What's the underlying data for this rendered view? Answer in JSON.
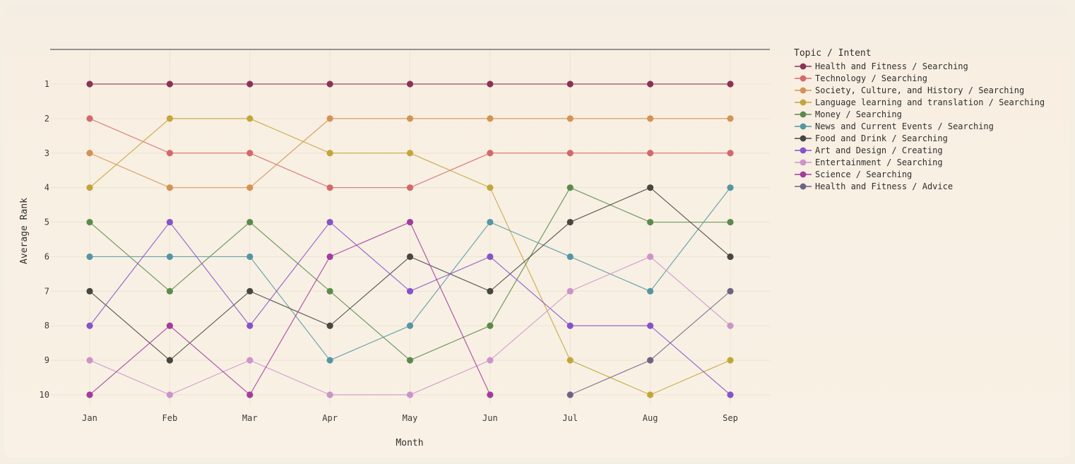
{
  "chart_data": {
    "type": "line",
    "xlabel": "Month",
    "ylabel": "Average Rank",
    "x": [
      "Jan",
      "Feb",
      "Mar",
      "Apr",
      "May",
      "Jun",
      "Jul",
      "Aug",
      "Sep"
    ],
    "yticks": [
      "1",
      "2",
      "3",
      "4",
      "5",
      "6",
      "7",
      "8",
      "9",
      "10"
    ],
    "ylim": [
      10.9,
      0
    ],
    "y_reversed": true,
    "grid": true,
    "legend": {
      "title": "Topic / Intent",
      "placement": "right"
    },
    "series": [
      {
        "name": "Health and Fitness / Searching",
        "color": "#8b3356",
        "values": [
          1,
          1,
          1,
          1,
          1,
          1,
          1,
          1,
          1
        ]
      },
      {
        "name": "Technology / Searching",
        "color": "#d2696b",
        "values": [
          2,
          3,
          3,
          4,
          4,
          3,
          3,
          3,
          3
        ]
      },
      {
        "name": "Society, Culture, and History / Searching",
        "color": "#d49254",
        "values": [
          3,
          4,
          4,
          2,
          2,
          2,
          2,
          2,
          2
        ]
      },
      {
        "name": "Language learning and translation / Searching",
        "color": "#c3a63a",
        "values": [
          4,
          2,
          2,
          3,
          3,
          4,
          9,
          10,
          9
        ]
      },
      {
        "name": "Money / Searching",
        "color": "#5b8b4b",
        "values": [
          5,
          7,
          5,
          7,
          9,
          8,
          4,
          5,
          5
        ]
      },
      {
        "name": "News and Current Events / Searching",
        "color": "#5596a3",
        "values": [
          6,
          6,
          6,
          9,
          8,
          5,
          6,
          7,
          4
        ]
      },
      {
        "name": "Food and Drink / Searching",
        "color": "#454740",
        "values": [
          7,
          9,
          7,
          8,
          6,
          7,
          5,
          4,
          6
        ]
      },
      {
        "name": "Art and Design / Creating",
        "color": "#8753c8",
        "values": [
          8,
          5,
          8,
          5,
          7,
          6,
          8,
          8,
          10
        ]
      },
      {
        "name": "Entertainment / Searching",
        "color": "#cc94ca",
        "values": [
          9,
          10,
          9,
          10,
          10,
          9,
          7,
          6,
          8
        ]
      },
      {
        "name": "Science / Searching",
        "color": "#a33c9e",
        "values": [
          10,
          8,
          10,
          6,
          5,
          10,
          null,
          null,
          null
        ]
      },
      {
        "name": "Health and Fitness / Advice",
        "color": "#6d6485",
        "values": [
          null,
          null,
          null,
          null,
          null,
          null,
          10,
          9,
          7
        ]
      }
    ]
  }
}
